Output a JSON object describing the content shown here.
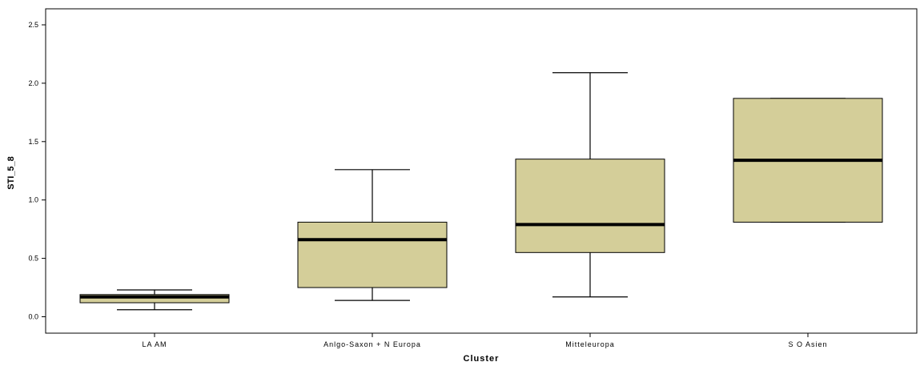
{
  "chart_data": {
    "type": "boxplot",
    "xlabel": "Cluster",
    "ylabel": "STI_5_8",
    "ylim": [
      -0.15,
      2.6
    ],
    "yticks": [
      0.0,
      0.5,
      1.0,
      1.5,
      2.0,
      2.5
    ],
    "ytick_labels": [
      "0.0",
      "0.5",
      "1.0",
      "1.5",
      "2.0",
      "2.5"
    ],
    "grid": false,
    "box_color": "#d4ce99",
    "categories": [
      "LAAM",
      "Anlgo-Saxon + N Europa",
      "Mitteleuropa",
      "SO Asien"
    ],
    "category_labels": [
      "LA AM",
      "Anlgo-Saxon + N Europa",
      "Mitteleuropa",
      "S O Asien"
    ],
    "boxes": [
      {
        "category": "LAAM",
        "min": 0.06,
        "q1": 0.12,
        "median": 0.17,
        "q3": 0.19,
        "max": 0.23
      },
      {
        "category": "Anlgo-Saxon + N Europa",
        "min": 0.14,
        "q1": 0.25,
        "median": 0.66,
        "q3": 0.81,
        "max": 1.26
      },
      {
        "category": "Mitteleuropa",
        "min": 0.17,
        "q1": 0.55,
        "median": 0.79,
        "q3": 1.35,
        "max": 2.09
      },
      {
        "category": "SO Asien",
        "min": 0.81,
        "q1": 0.81,
        "median": 1.34,
        "q3": 1.87,
        "max": 1.87
      }
    ]
  }
}
